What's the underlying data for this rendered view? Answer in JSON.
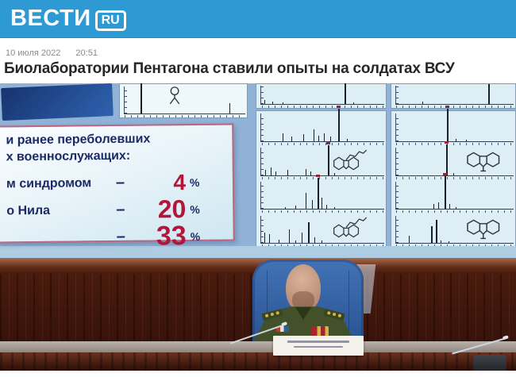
{
  "header": {
    "brand": "ВЕСТИ",
    "brand_suffix": "RU",
    "banner_color": "#2d9ad3"
  },
  "article": {
    "date": "10 июля 2022",
    "time": "20:51",
    "headline": "Биолаборатории Пентагона ставили опыты на солдатах ВСУ"
  },
  "photo": {
    "slide": {
      "title_line1": "и ранее переболевших",
      "title_line2": "х военнослужащих:",
      "rows": [
        {
          "label": "м синдромом",
          "dash": "–",
          "value": "4",
          "unit": "%"
        },
        {
          "label": "о Нила",
          "dash": "–",
          "value": "20",
          "unit": "%"
        },
        {
          "label": "",
          "dash": "–",
          "value": "33",
          "unit": "%"
        }
      ],
      "accent_color": "#b0173a",
      "text_color": "#1b2a66",
      "border_color": "#bb6781"
    },
    "spectra": {
      "panel_molecule": {
        "sections": [
          {
            "peaks": [
              [
                16,
                90
              ],
              [
                86,
                30
              ]
            ],
            "mol": "branch"
          }
        ]
      },
      "top_left": {
        "sections": [
          {
            "peaks": [
              [
                6,
                18
              ],
              [
                12,
                10
              ],
              [
                20,
                8
              ],
              [
                68,
                90
              ],
              [
                75,
                8
              ]
            ]
          }
        ]
      },
      "top_right": {
        "sections": [
          {
            "peaks": [
              [
                25,
                10
              ],
              [
                78,
                85
              ]
            ]
          }
        ]
      },
      "main_left": {
        "sections": [
          {
            "peaks": [
              [
                20,
                22
              ],
              [
                27,
                14
              ],
              [
                36,
                20
              ],
              [
                44,
                34
              ],
              [
                48,
                16
              ],
              [
                52,
                22
              ],
              [
                57,
                13
              ],
              [
                63,
                96
              ],
              [
                70,
                6
              ]
            ]
          },
          {
            "peaks": [
              [
                7,
                16
              ],
              [
                11,
                22
              ],
              [
                15,
                10
              ],
              [
                24,
                16
              ],
              [
                38,
                18
              ],
              [
                42,
                10
              ],
              [
                55,
                88
              ],
              [
                60,
                6
              ]
            ],
            "mol": "chain"
          },
          {
            "peaks": [
              [
                22,
                6
              ],
              [
                30,
                10
              ],
              [
                38,
                48
              ],
              [
                43,
                26
              ],
              [
                47,
                92
              ],
              [
                50,
                34
              ],
              [
                54,
                12
              ],
              [
                60,
                6
              ]
            ]
          },
          {
            "peaks": [
              [
                6,
                30
              ],
              [
                10,
                26
              ],
              [
                17,
                10
              ],
              [
                25,
                40
              ],
              [
                30,
                8
              ],
              [
                35,
                30
              ],
              [
                40,
                62
              ],
              [
                45,
                16
              ],
              [
                50,
                8
              ]
            ],
            "mol": "chain"
          }
        ]
      },
      "main_right": {
        "sections": [
          {
            "peaks": [
              [
                45,
                95
              ],
              [
                52,
                7
              ],
              [
                60,
                4
              ]
            ]
          },
          {
            "peaks": [
              [
                44,
                90
              ],
              [
                50,
                6
              ]
            ],
            "mol": "rings"
          },
          {
            "peaks": [
              [
                34,
                14
              ],
              [
                38,
                20
              ],
              [
                43,
                96
              ],
              [
                47,
                14
              ],
              [
                52,
                6
              ]
            ]
          },
          {
            "peaks": [
              [
                14,
                20
              ],
              [
                32,
                50
              ],
              [
                36,
                68
              ],
              [
                40,
                8
              ],
              [
                46,
                4
              ]
            ],
            "mol": "rings"
          }
        ]
      }
    }
  }
}
